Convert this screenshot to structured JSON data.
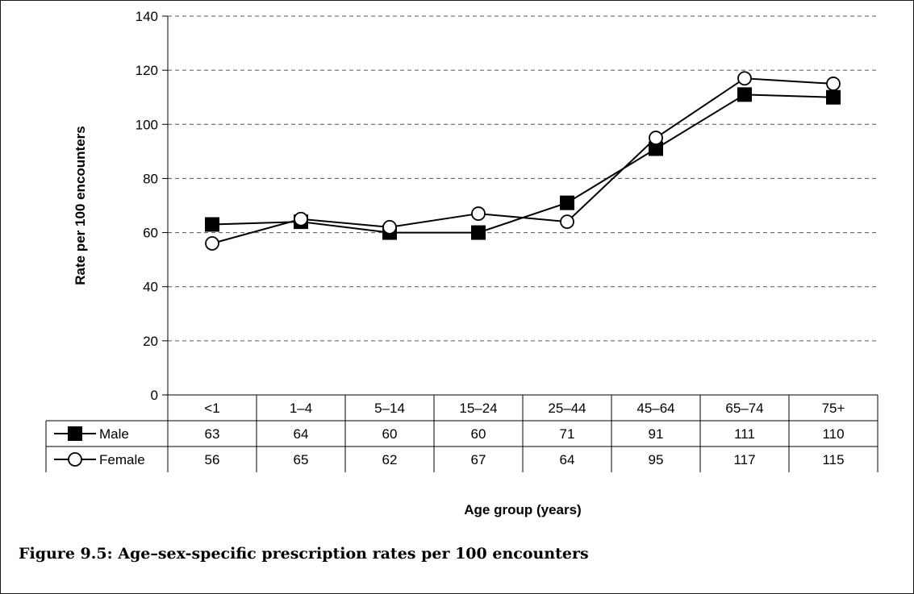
{
  "caption": "Figure 9.5: Age–sex-specific prescription rates per 100 encounters",
  "chart_data": {
    "type": "line",
    "categories": [
      "<1",
      "1–4",
      "5–14",
      "15–24",
      "25–44",
      "45–64",
      "65–74",
      "75+"
    ],
    "series": [
      {
        "name": "Male",
        "values": [
          63,
          64,
          60,
          60,
          71,
          91,
          111,
          110
        ],
        "marker": "filled-square"
      },
      {
        "name": "Female",
        "values": [
          56,
          65,
          62,
          67,
          64,
          95,
          117,
          115
        ],
        "marker": "open-circle"
      }
    ],
    "ylabel": "Rate per 100 encounters",
    "xlabel": "Age group (years)",
    "ylim": [
      0,
      140
    ],
    "yticks": [
      0,
      20,
      40,
      60,
      80,
      100,
      120,
      140
    ],
    "grid": "horizontal dashed",
    "legend": "data table",
    "colors": {
      "line": "#000000",
      "grid": "#555555"
    }
  }
}
